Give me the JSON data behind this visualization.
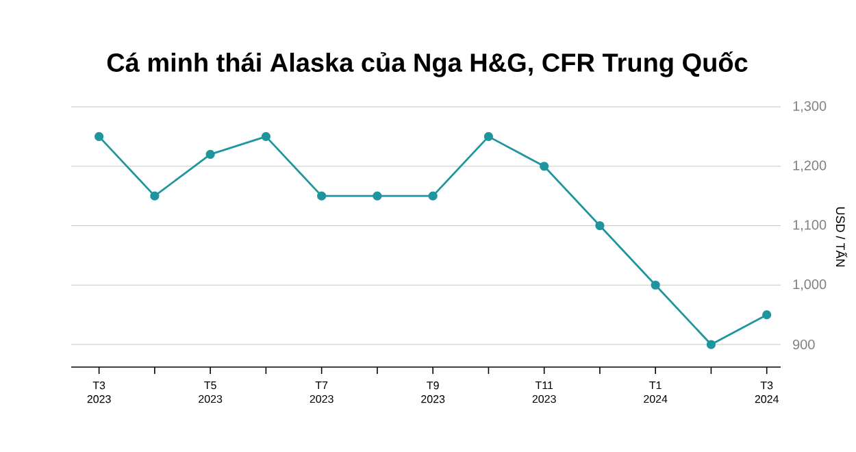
{
  "chart_data": {
    "type": "line",
    "title": "Cá minh thái Alaska của Nga H&G, CFR Trung Quốc",
    "ylabel": "USD / TẤN",
    "categories": [
      "T3 2023",
      null,
      "T5 2023",
      null,
      "T7 2023",
      null,
      "T9 2023",
      null,
      "T11 2023",
      null,
      "T1 2024",
      null,
      "T3 2024"
    ],
    "series": [
      {
        "color": "#1f959e",
        "values": [
          1250,
          1150,
          1220,
          1250,
          1150,
          1150,
          1150,
          1250,
          1200,
          1100,
          1000,
          900,
          950
        ]
      }
    ],
    "ylim": [
      862,
      1300
    ],
    "yticks": [
      {
        "value": 900,
        "label": "900"
      },
      {
        "value": 1000,
        "label": "1,000"
      },
      {
        "value": 1100,
        "label": "1,100"
      },
      {
        "value": 1200,
        "label": "1,200"
      },
      {
        "value": 1300,
        "label": "1,300"
      }
    ],
    "grid": "y",
    "marker": "circle",
    "line_style": "solid"
  }
}
